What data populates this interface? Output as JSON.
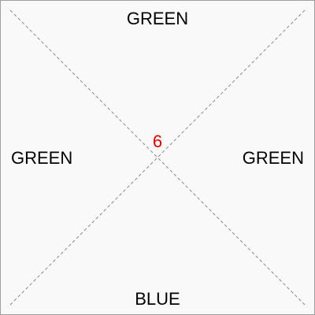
{
  "board": {
    "top_label": "GREEN",
    "left_label": "GREEN",
    "right_label": "GREEN",
    "bottom_label": "BLUE",
    "center_number": "6",
    "center_number_color": "#e00000",
    "diagonal_color": "#8a8a8a"
  }
}
